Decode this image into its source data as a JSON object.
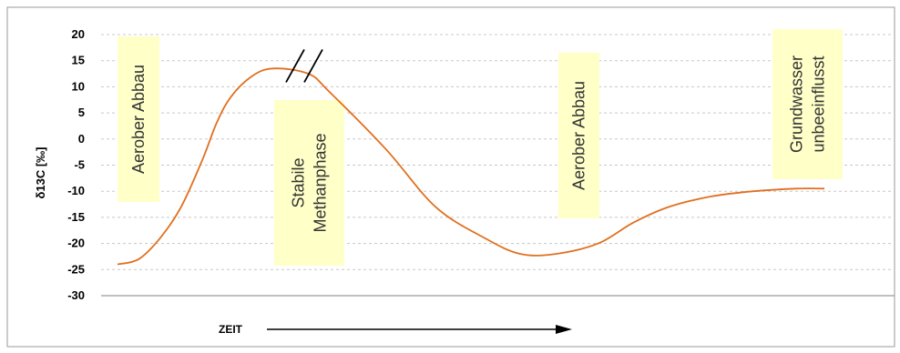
{
  "chart_data": {
    "type": "line",
    "title": "",
    "ylabel": "δ13C [‰]",
    "xlabel": "ZEIT",
    "ylim": [
      -30,
      20
    ],
    "yticks": [
      20,
      15,
      10,
      5,
      0,
      -5,
      -10,
      -15,
      -20,
      -25,
      -30
    ],
    "grid": true,
    "x": [
      0,
      3,
      6,
      9,
      12,
      14,
      16,
      19,
      22,
      27,
      30,
      38,
      45,
      52,
      57,
      62,
      68,
      73,
      78,
      84,
      90,
      96,
      100
    ],
    "series": [
      {
        "color": "#e07020",
        "values": [
          -24,
          -23,
          -19,
          -13,
          -4,
          3,
          8,
          12,
          13.5,
          12.5,
          9,
          -2,
          -13,
          -19,
          -22,
          -22,
          -20,
          -16,
          -13,
          -11,
          -10,
          -9.5,
          -9.5
        ]
      }
    ],
    "break_mark": "//",
    "annotations": [
      {
        "lines": [
          "Aerober Abbau"
        ]
      },
      {
        "lines": [
          "Stabile",
          "Methanphase"
        ]
      },
      {
        "lines": [
          "Aerober Abbau"
        ]
      },
      {
        "lines": [
          "Grundwasser",
          "unbeeinflusst"
        ]
      }
    ],
    "annotation_fill": "#ffffc8"
  }
}
